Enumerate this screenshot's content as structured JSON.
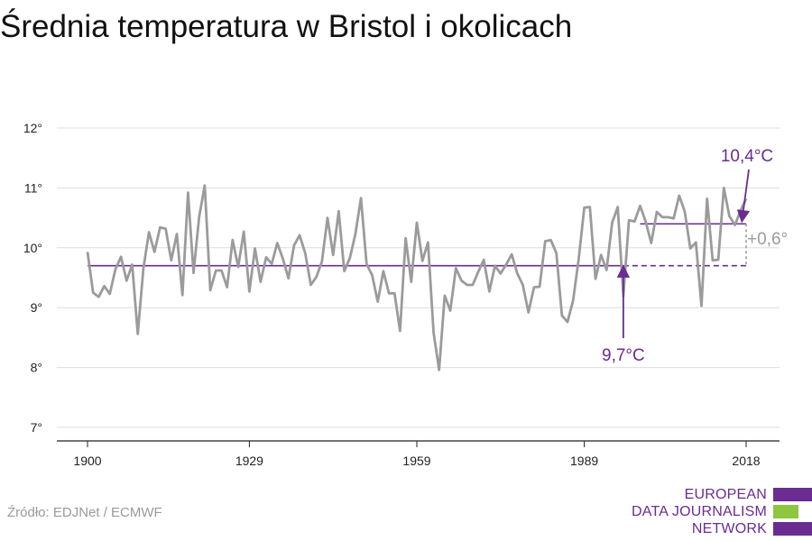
{
  "title": "Średnia temperatura w Bristol i okolicach",
  "source": "Źródło: EDJNet / ECMWF",
  "logo": {
    "lines": [
      "EUROPEAN",
      "DATA JOURNALISM",
      "NETWORK"
    ]
  },
  "colors": {
    "line": "#9b9b9b",
    "accent": "#6a2c91",
    "green": "#8dc63f",
    "grid": "#dddddd"
  },
  "chart_data": {
    "type": "line",
    "title": "Średnia temperatura w Bristol i okolicach",
    "xlabel": "",
    "ylabel": "",
    "xlim": [
      1900,
      2018
    ],
    "ylim": [
      7,
      12
    ],
    "yticks": [
      {
        "value": 7,
        "label": "7°"
      },
      {
        "value": 8,
        "label": "8°"
      },
      {
        "value": 9,
        "label": "9°"
      },
      {
        "value": 10,
        "label": "10°"
      },
      {
        "value": 11,
        "label": "11°"
      },
      {
        "value": 12,
        "label": "12°"
      }
    ],
    "xticks": [
      {
        "value": 1900,
        "label": "1900"
      },
      {
        "value": 1929,
        "label": "1929"
      },
      {
        "value": 1959,
        "label": "1959"
      },
      {
        "value": 1989,
        "label": "1989"
      },
      {
        "value": 2018,
        "label": "2018"
      }
    ],
    "grid": true,
    "series": [
      {
        "x": [
          1900,
          1901,
          1902,
          1903,
          1904,
          1905,
          1906,
          1907,
          1908,
          1909,
          1910,
          1911,
          1912,
          1913,
          1914,
          1915,
          1916,
          1917,
          1918,
          1919,
          1920,
          1921,
          1922,
          1923,
          1924,
          1925,
          1926,
          1927,
          1928,
          1929,
          1930,
          1931,
          1932,
          1933,
          1934,
          1935,
          1936,
          1937,
          1938,
          1939,
          1940,
          1941,
          1942,
          1943,
          1944,
          1945,
          1946,
          1947,
          1948,
          1949,
          1950,
          1951,
          1952,
          1953,
          1954,
          1955,
          1956,
          1957,
          1958,
          1959,
          1960,
          1961,
          1962,
          1963,
          1964,
          1965,
          1966,
          1967,
          1968,
          1969,
          1970,
          1971,
          1972,
          1973,
          1974,
          1975,
          1976,
          1977,
          1978,
          1979,
          1980,
          1981,
          1982,
          1983,
          1984,
          1985,
          1986,
          1987,
          1988,
          1989,
          1990,
          1991,
          1992,
          1993,
          1994,
          1995,
          1996,
          1997,
          1998,
          1999,
          2000,
          2001,
          2002,
          2003,
          2004,
          2005,
          2006,
          2007,
          2008,
          2009,
          2010,
          2011,
          2012,
          2013,
          2014,
          2015,
          2016,
          2017,
          2018
        ],
        "values": [
          9.93,
          9.25,
          9.18,
          9.36,
          9.23,
          9.64,
          9.85,
          9.45,
          9.72,
          8.56,
          9.65,
          10.26,
          9.93,
          10.34,
          10.32,
          9.79,
          10.23,
          9.21,
          10.92,
          9.58,
          10.51,
          11.04,
          9.29,
          9.62,
          9.62,
          9.34,
          10.13,
          9.68,
          10.27,
          9.27,
          9.99,
          9.43,
          9.84,
          9.73,
          10.08,
          9.82,
          9.49,
          10.04,
          10.21,
          9.91,
          9.38,
          9.51,
          9.77,
          10.5,
          9.88,
          10.61,
          9.61,
          9.83,
          10.23,
          10.83,
          9.73,
          9.54,
          9.1,
          9.61,
          9.24,
          9.24,
          8.61,
          10.16,
          9.43,
          10.42,
          9.78,
          10.09,
          8.58,
          7.96,
          9.2,
          8.95,
          9.66,
          9.45,
          9.38,
          9.38,
          9.6,
          9.8,
          9.27,
          9.7,
          9.57,
          9.72,
          9.89,
          9.57,
          9.38,
          8.92,
          9.34,
          9.35,
          10.11,
          10.13,
          9.91,
          8.87,
          8.76,
          9.12,
          9.81,
          10.67,
          10.68,
          9.48,
          9.88,
          9.63,
          10.42,
          10.68,
          9.19,
          10.46,
          10.44,
          10.7,
          10.44,
          10.08,
          10.6,
          10.51,
          10.51,
          10.49,
          10.87,
          10.61,
          9.99,
          10.09,
          9.03,
          10.82,
          9.79,
          9.8,
          11.0,
          10.53,
          10.38,
          10.62,
          10.82
        ]
      }
    ],
    "reference_line": {
      "value": 9.7,
      "label": "9,7°C"
    },
    "recent_average": {
      "value": 10.4,
      "label": "10,4°C"
    },
    "difference_label": "+0,6°"
  }
}
